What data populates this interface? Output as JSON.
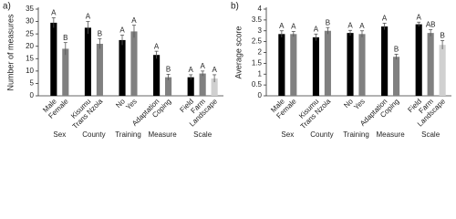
{
  "chart_data": [
    {
      "type": "bar",
      "panel_label": "a)",
      "y_label": "Number of measures",
      "ylim": [
        0,
        35
      ],
      "yticks": [
        0,
        5,
        10,
        15,
        20,
        25,
        30,
        35
      ],
      "groups": [
        {
          "name": "Sex",
          "categories": [
            "Male",
            "Female"
          ],
          "values": [
            29.5,
            19
          ],
          "errors": [
            2,
            2.5
          ],
          "letters": [
            "A",
            "B"
          ],
          "colors": [
            "#000000",
            "#808080"
          ]
        },
        {
          "name": "County",
          "categories": [
            "Kisumu",
            "Trans Nzoia"
          ],
          "values": [
            27.5,
            21
          ],
          "errors": [
            2.5,
            2
          ],
          "letters": [
            "A",
            "B"
          ],
          "colors": [
            "#000000",
            "#808080"
          ]
        },
        {
          "name": "Training",
          "categories": [
            "No",
            "Yes"
          ],
          "values": [
            22.5,
            26
          ],
          "errors": [
            2,
            2.5
          ],
          "letters": [
            "A",
            "A"
          ],
          "colors": [
            "#000000",
            "#808080"
          ]
        },
        {
          "name": "Measure",
          "categories": [
            "Adaptation",
            "Coping"
          ],
          "values": [
            16.5,
            7.5
          ],
          "errors": [
            1.5,
            1.2
          ],
          "letters": [
            "A",
            "B"
          ],
          "colors": [
            "#000000",
            "#808080"
          ]
        },
        {
          "name": "Scale",
          "categories": [
            "Field",
            "Farm",
            "Landscape"
          ],
          "values": [
            7.5,
            9,
            7
          ],
          "errors": [
            1,
            1,
            1.5
          ],
          "letters": [
            "A",
            "A",
            "A"
          ],
          "colors": [
            "#000000",
            "#808080",
            "#d0d0d0"
          ]
        }
      ]
    },
    {
      "type": "bar",
      "panel_label": "b)",
      "y_label": "Average score",
      "ylim": [
        0,
        4
      ],
      "yticks": [
        0,
        0.5,
        1,
        1.5,
        2,
        2.5,
        3,
        3.5,
        4
      ],
      "groups": [
        {
          "name": "Sex",
          "categories": [
            "Male",
            "Female"
          ],
          "values": [
            2.85,
            2.85
          ],
          "errors": [
            0.15,
            0.12
          ],
          "letters": [
            "A",
            "A"
          ],
          "colors": [
            "#000000",
            "#808080"
          ]
        },
        {
          "name": "County",
          "categories": [
            "Kisumu",
            "Trans Nzoia"
          ],
          "values": [
            2.7,
            3.0
          ],
          "errors": [
            0.15,
            0.15
          ],
          "letters": [
            "A",
            "B"
          ],
          "colors": [
            "#000000",
            "#808080"
          ]
        },
        {
          "name": "Training",
          "categories": [
            "No",
            "Yes"
          ],
          "values": [
            2.9,
            2.85
          ],
          "errors": [
            0.12,
            0.15
          ],
          "letters": [
            "A",
            "A"
          ],
          "colors": [
            "#000000",
            "#808080"
          ]
        },
        {
          "name": "Measure",
          "categories": [
            "Adaptation",
            "Coping"
          ],
          "values": [
            3.2,
            1.8
          ],
          "errors": [
            0.15,
            0.12
          ],
          "letters": [
            "A",
            "B"
          ],
          "colors": [
            "#000000",
            "#808080"
          ]
        },
        {
          "name": "Scale",
          "categories": [
            "Field",
            "Farm",
            "Landscape"
          ],
          "values": [
            3.3,
            2.9,
            2.35
          ],
          "errors": [
            0.1,
            0.15,
            0.2
          ],
          "letters": [
            "A",
            "AB",
            "B"
          ],
          "colors": [
            "#000000",
            "#808080",
            "#d0d0d0"
          ]
        }
      ]
    }
  ]
}
